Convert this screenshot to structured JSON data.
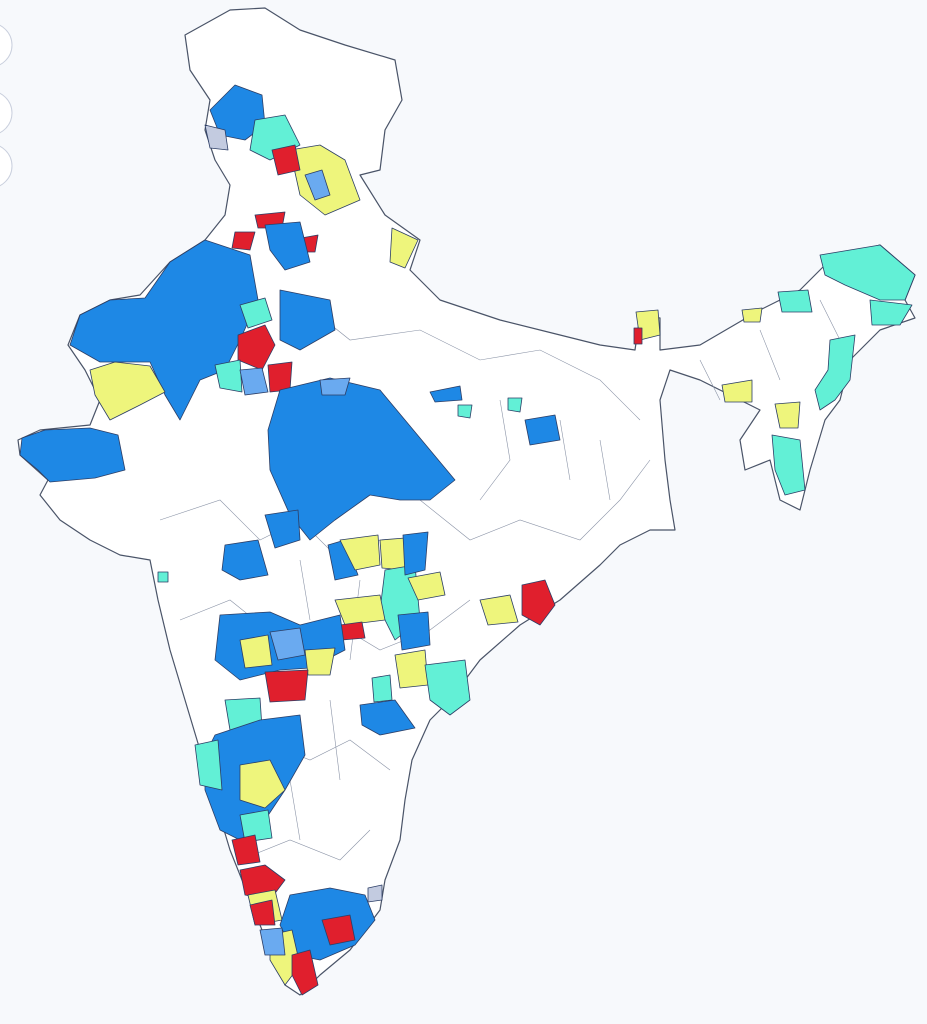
{
  "map": {
    "region_colors": [
      "#1e88e5",
      "#6aaaf0",
      "#62f0d6",
      "#eef57c",
      "#e01f2d",
      "#c3cbe0"
    ]
  }
}
